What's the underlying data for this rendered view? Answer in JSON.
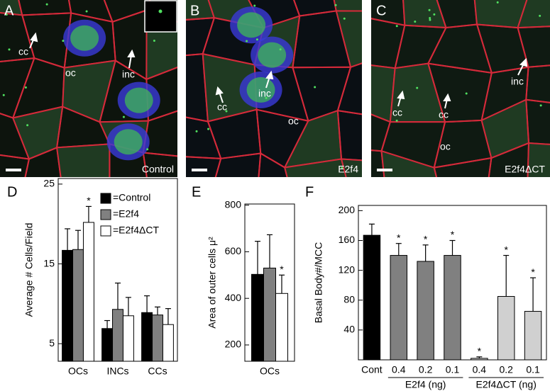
{
  "image_panels": [
    {
      "letter": "A",
      "labels": [
        "cc",
        "inc",
        "oc"
      ],
      "caption": "Control"
    },
    {
      "letter": "B",
      "labels": [
        "cc",
        "inc",
        "oc"
      ],
      "caption": "E2f4"
    },
    {
      "letter": "C",
      "labels": [
        "inc",
        "cc",
        "cc",
        "oc"
      ],
      "caption": "E2f4ΔCT"
    }
  ],
  "chart_data": [
    {
      "type": "bar",
      "label": "D",
      "y_label": "Average # Cells/Field",
      "categories": [
        "OCs",
        "INCs",
        "CCs"
      ],
      "series": [
        {
          "name": "=Control",
          "color": "#000000",
          "values": [
            16.7,
            6.9,
            8.9
          ],
          "errors": [
            2.7,
            1.0,
            2.1
          ],
          "marks": [
            null,
            null,
            null
          ]
        },
        {
          "name": "=E2f4",
          "color": "#808080",
          "values": [
            16.8,
            9.3,
            8.6
          ],
          "errors": [
            2.4,
            3.3,
            1.0
          ],
          "marks": [
            null,
            null,
            null
          ]
        },
        {
          "name": "=E2f4ΔCT",
          "color": "#ffffff",
          "values": [
            20.2,
            8.5,
            7.4
          ],
          "errors": [
            2.0,
            2.3,
            2.0
          ],
          "marks": [
            "*",
            null,
            null
          ]
        }
      ],
      "ylim": [
        2.8,
        25.7
      ],
      "yticks": [
        5,
        15,
        25
      ]
    },
    {
      "type": "bar",
      "label": "E",
      "y_label": "Area of outer cells μ²",
      "categories": [
        "OCs"
      ],
      "series": [
        {
          "name": "Control",
          "color": "#000000",
          "values": [
            503
          ],
          "errors": [
            142
          ],
          "marks": [
            null
          ]
        },
        {
          "name": "E2f4",
          "color": "#808080",
          "values": [
            530
          ],
          "errors": [
            143
          ],
          "marks": [
            null
          ]
        },
        {
          "name": "E2f4ΔCT",
          "color": "#ffffff",
          "values": [
            421
          ],
          "errors": [
            79
          ],
          "marks": [
            "*"
          ]
        }
      ],
      "ylim": [
        130,
        805
      ],
      "yticks": [
        200,
        400,
        600,
        800
      ]
    },
    {
      "type": "bar",
      "label": "F",
      "y_label": "Basal Body#/MCC",
      "categories": [
        "Cont",
        "0.4",
        "0.2",
        "0.1",
        "0.4",
        "0.2",
        "0.1"
      ],
      "values": [
        167,
        140,
        132,
        140,
        2,
        85,
        65
      ],
      "errors": [
        15,
        16,
        22,
        20,
        2,
        55,
        45
      ],
      "colors": [
        "#000000",
        "#808080",
        "#808080",
        "#808080",
        "#d0d0d0",
        "#d0d0d0",
        "#d0d0d0"
      ],
      "marks": [
        null,
        "*",
        "*",
        "*",
        "*",
        "*",
        "*"
      ],
      "group_labels": [
        "E2f4 (ng)",
        "E2f4ΔCT (ng)"
      ],
      "ylim": [
        0,
        207
      ],
      "yticks": [
        40,
        80,
        120,
        160,
        200
      ]
    }
  ]
}
